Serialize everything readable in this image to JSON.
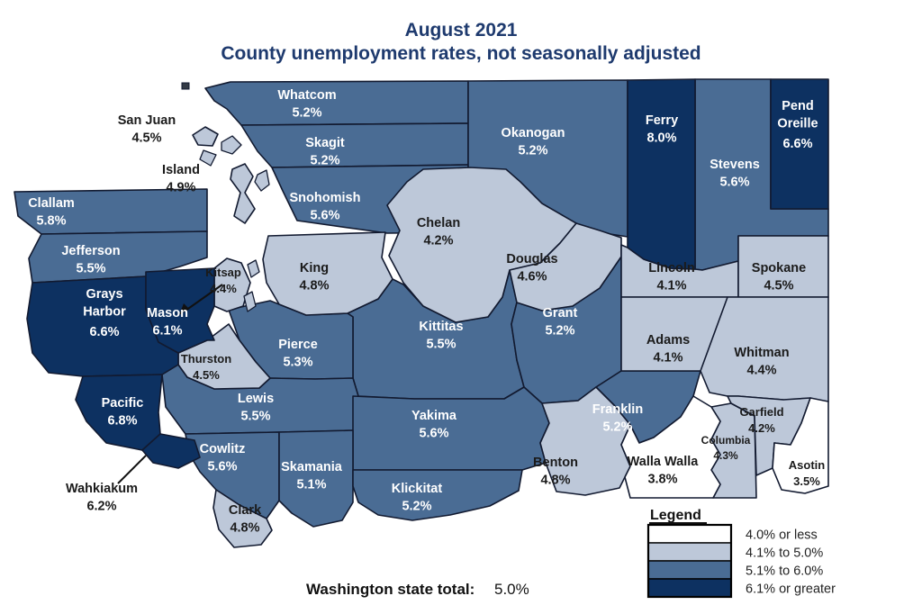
{
  "title": "August 2021",
  "subtitle": "County unemployment rates, not seasonally adjusted",
  "colors": {
    "title_text": "#1e3a6e",
    "band_white": "#ffffff",
    "band_light": "#bdc8d9",
    "band_medium": "#4a6c94",
    "band_dark": "#0d3161",
    "border": "#121a30"
  },
  "legend": {
    "title": "Legend",
    "entries": [
      {
        "label": "4.0% or less",
        "band": "band_white"
      },
      {
        "label": "4.1% to 5.0%",
        "band": "band_light"
      },
      {
        "label": "5.1% to 6.0%",
        "band": "band_medium"
      },
      {
        "label": "6.1% or greater",
        "band": "band_dark"
      }
    ]
  },
  "state_total": {
    "label": "Washington state total:",
    "value": "5.0%"
  },
  "counties": [
    {
      "name": "Whatcom",
      "rate": "5.2%",
      "band": "band_medium"
    },
    {
      "name": "Skagit",
      "rate": "5.2%",
      "band": "band_medium"
    },
    {
      "name": "Snohomish",
      "rate": "5.6%",
      "band": "band_medium"
    },
    {
      "name": "San Juan",
      "rate": "4.5%",
      "band": "band_light"
    },
    {
      "name": "Island",
      "rate": "4.9%",
      "band": "band_light"
    },
    {
      "name": "Okanogan",
      "rate": "5.2%",
      "band": "band_medium"
    },
    {
      "name": "Ferry",
      "rate": "8.0%",
      "band": "band_dark"
    },
    {
      "name": "Stevens",
      "rate": "5.6%",
      "band": "band_medium"
    },
    {
      "name": "Pend Oreille",
      "rate": "6.6%",
      "band": "band_dark"
    },
    {
      "name": "Clallam",
      "rate": "5.8%",
      "band": "band_medium"
    },
    {
      "name": "Jefferson",
      "rate": "5.5%",
      "band": "band_medium"
    },
    {
      "name": "Chelan",
      "rate": "4.2%",
      "band": "band_light"
    },
    {
      "name": "Douglas",
      "rate": "4.6%",
      "band": "band_light"
    },
    {
      "name": "King",
      "rate": "4.8%",
      "band": "band_light"
    },
    {
      "name": "Kitsap",
      "rate": "4.4%",
      "band": "band_light"
    },
    {
      "name": "Lincoln",
      "rate": "4.1%",
      "band": "band_light"
    },
    {
      "name": "Spokane",
      "rate": "4.5%",
      "band": "band_light"
    },
    {
      "name": "Grays Harbor",
      "rate": "6.6%",
      "band": "band_dark"
    },
    {
      "name": "Mason",
      "rate": "6.1%",
      "band": "band_dark"
    },
    {
      "name": "Kittitas",
      "rate": "5.5%",
      "band": "band_medium"
    },
    {
      "name": "Grant",
      "rate": "5.2%",
      "band": "band_medium"
    },
    {
      "name": "Adams",
      "rate": "4.1%",
      "band": "band_light"
    },
    {
      "name": "Whitman",
      "rate": "4.4%",
      "band": "band_light"
    },
    {
      "name": "Pierce",
      "rate": "5.3%",
      "band": "band_medium"
    },
    {
      "name": "Thurston",
      "rate": "4.5%",
      "band": "band_light"
    },
    {
      "name": "Pacific",
      "rate": "6.8%",
      "band": "band_dark"
    },
    {
      "name": "Lewis",
      "rate": "5.5%",
      "band": "band_medium"
    },
    {
      "name": "Yakima",
      "rate": "5.6%",
      "band": "band_medium"
    },
    {
      "name": "Franklin",
      "rate": "5.2%",
      "band": "band_medium"
    },
    {
      "name": "Benton",
      "rate": "4.8%",
      "band": "band_light"
    },
    {
      "name": "Walla Walla",
      "rate": "3.8%",
      "band": "band_white"
    },
    {
      "name": "Columbia",
      "rate": "4.3%",
      "band": "band_light"
    },
    {
      "name": "Garfield",
      "rate": "4.2%",
      "band": "band_light"
    },
    {
      "name": "Asotin",
      "rate": "3.5%",
      "band": "band_white"
    },
    {
      "name": "Wahkiakum",
      "rate": "6.2%",
      "band": "band_dark"
    },
    {
      "name": "Cowlitz",
      "rate": "5.6%",
      "band": "band_medium"
    },
    {
      "name": "Skamania",
      "rate": "5.1%",
      "band": "band_medium"
    },
    {
      "name": "Clark",
      "rate": "4.8%",
      "band": "band_light"
    },
    {
      "name": "Klickitat",
      "rate": "5.2%",
      "band": "band_medium"
    }
  ]
}
